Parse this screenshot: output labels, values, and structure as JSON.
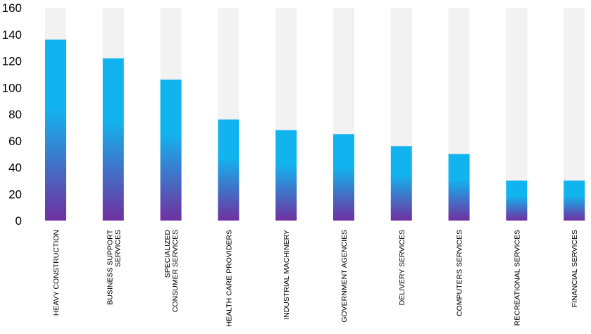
{
  "chart_data": {
    "type": "bar",
    "title": "",
    "xlabel": "",
    "ylabel": "",
    "ylim": [
      0,
      160
    ],
    "yticks": [
      0,
      20,
      40,
      60,
      80,
      100,
      120,
      140,
      160
    ],
    "grid": false,
    "legend": "none",
    "categories": [
      [
        "HEAVY CONSTRUCTION"
      ],
      [
        "BUSINESS SUPPORT",
        "SERVICES"
      ],
      [
        "SPECIALIZED",
        "CONSUMER SERVICES"
      ],
      [
        "HEALTH CARE PROVIDERS"
      ],
      [
        "INDUSTRIAL MACHINERY"
      ],
      [
        "GOVERNMENT AGENCIES"
      ],
      [
        "DELIVERY SERVICES"
      ],
      [
        "COMPUTERS SERVICES"
      ],
      [
        "RECREATIONAL SERVICES"
      ],
      [
        "FINANCIAL SERVICES"
      ]
    ],
    "values": [
      136,
      122,
      106,
      76,
      68,
      65,
      56,
      50,
      30,
      30
    ],
    "colors": {
      "bar_top": "#12b4ef",
      "bar_bottom": "#7030a0",
      "background_bar": "#f2f2f2"
    }
  }
}
